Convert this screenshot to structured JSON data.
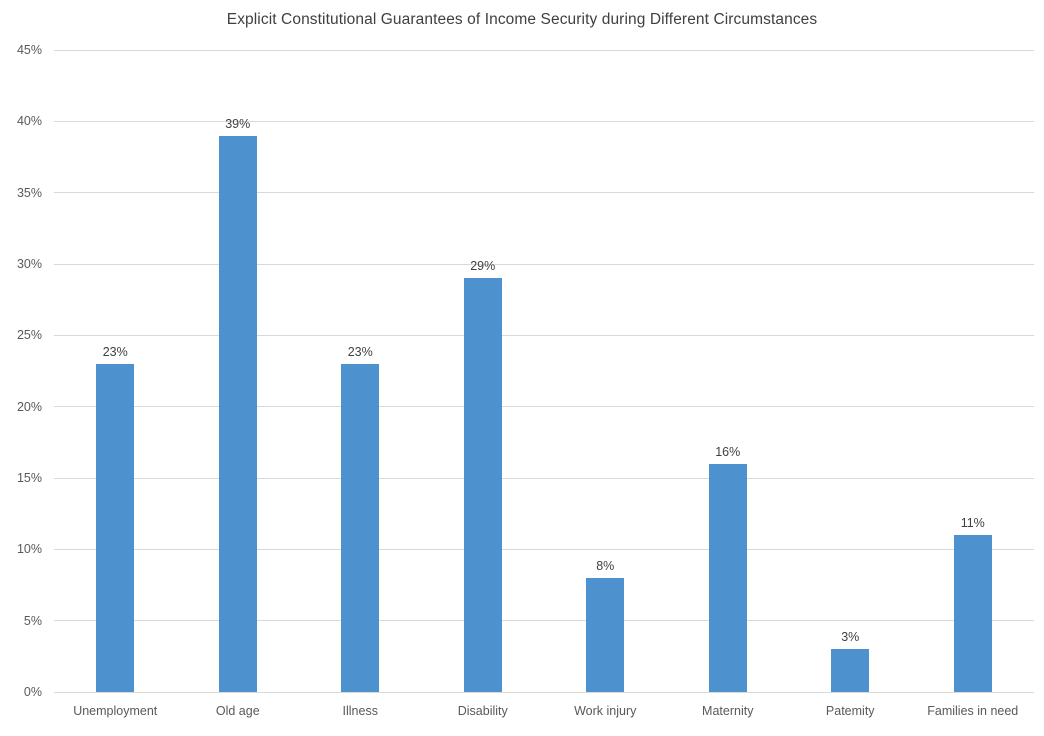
{
  "chart_data": {
    "type": "bar",
    "title": "Explicit Constitutional Guarantees of Income Security during Different Circumstances",
    "categories": [
      "Unemployment",
      "Old age",
      "Illness",
      "Disability",
      "Work injury",
      "Maternity",
      "Patemity",
      "Families in need"
    ],
    "values": [
      23,
      39,
      23,
      29,
      8,
      16,
      3,
      11
    ],
    "value_labels": [
      "23%",
      "39%",
      "23%",
      "29%",
      "8%",
      "16%",
      "3%",
      "11%"
    ],
    "xlabel": "",
    "ylabel": "",
    "ylim": [
      0,
      45
    ],
    "yticks": [
      {
        "value": 0,
        "label": "0%"
      },
      {
        "value": 5,
        "label": "5%"
      },
      {
        "value": 10,
        "label": "10%"
      },
      {
        "value": 15,
        "label": "15%"
      },
      {
        "value": 20,
        "label": "20%"
      },
      {
        "value": 25,
        "label": "25%"
      },
      {
        "value": 30,
        "label": "30%"
      },
      {
        "value": 35,
        "label": "35%"
      },
      {
        "value": 40,
        "label": "40%"
      },
      {
        "value": 45,
        "label": "45%"
      }
    ],
    "grid": true,
    "legend": false,
    "legend_position": "none",
    "colors": {
      "bar": "#4d91ce",
      "gridline": "#d9d9d9",
      "title_text": "#404040",
      "value_label_text": "#404040",
      "axis_text": "#595959",
      "background": "#ffffff"
    }
  }
}
